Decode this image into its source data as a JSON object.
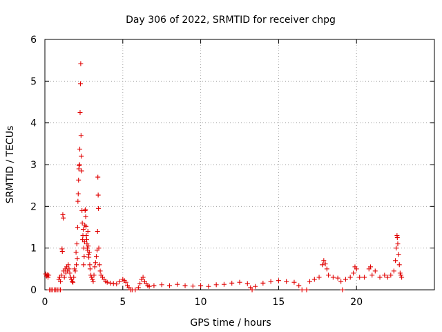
{
  "chart_data": {
    "type": "scatter",
    "title": "Day 306 of 2022, SRMTID for receiver chpg",
    "xlabel": "GPS time / hours",
    "ylabel": "SRMTID / TECUs",
    "xlim": [
      0,
      25
    ],
    "ylim": [
      0,
      6
    ],
    "xticks": [
      0,
      5,
      10,
      15,
      20
    ],
    "yticks": [
      0,
      1,
      2,
      3,
      4,
      5,
      6
    ],
    "grid": true,
    "marker": "+",
    "color": "#e00000",
    "series": [
      {
        "name": "SRMTID",
        "points": [
          [
            0.05,
            0.38
          ],
          [
            0.1,
            0.33
          ],
          [
            0.15,
            0.36
          ],
          [
            0.2,
            0.3
          ],
          [
            0.25,
            0.35
          ],
          [
            0.3,
            0.0
          ],
          [
            0.4,
            0.0
          ],
          [
            0.5,
            0.0
          ],
          [
            0.6,
            0.0
          ],
          [
            0.7,
            0.0
          ],
          [
            0.8,
            0.0
          ],
          [
            0.9,
            0.0
          ],
          [
            1.0,
            0.0
          ],
          [
            0.9,
            0.25
          ],
          [
            0.95,
            0.3
          ],
          [
            1.0,
            0.2
          ],
          [
            1.05,
            0.35
          ],
          [
            1.1,
            0.98
          ],
          [
            1.12,
            0.92
          ],
          [
            1.15,
            1.8
          ],
          [
            1.18,
            1.72
          ],
          [
            1.2,
            0.45
          ],
          [
            1.25,
            0.3
          ],
          [
            1.3,
            0.5
          ],
          [
            1.35,
            0.4
          ],
          [
            1.4,
            0.55
          ],
          [
            1.45,
            0.45
          ],
          [
            1.5,
            0.6
          ],
          [
            1.55,
            0.5
          ],
          [
            1.6,
            0.4
          ],
          [
            1.65,
            0.3
          ],
          [
            1.7,
            0.25
          ],
          [
            1.75,
            0.2
          ],
          [
            1.8,
            0.18
          ],
          [
            1.85,
            0.3
          ],
          [
            1.9,
            0.5
          ],
          [
            1.95,
            0.45
          ],
          [
            2.0,
            0.9
          ],
          [
            2.02,
            0.6
          ],
          [
            2.05,
            1.1
          ],
          [
            2.08,
            0.75
          ],
          [
            2.1,
            1.5
          ],
          [
            2.12,
            2.12
          ],
          [
            2.14,
            2.3
          ],
          [
            2.16,
            2.63
          ],
          [
            2.18,
            2.9
          ],
          [
            2.2,
            2.98
          ],
          [
            2.22,
            3.0
          ],
          [
            2.24,
            3.37
          ],
          [
            2.26,
            4.25
          ],
          [
            2.28,
            4.94
          ],
          [
            2.3,
            5.42
          ],
          [
            2.32,
            3.7
          ],
          [
            2.34,
            3.2
          ],
          [
            2.36,
            2.85
          ],
          [
            2.38,
            1.9
          ],
          [
            2.4,
            1.6
          ],
          [
            2.42,
            1.2
          ],
          [
            2.44,
            1.3
          ],
          [
            2.46,
            1.45
          ],
          [
            2.48,
            0.6
          ],
          [
            2.5,
            1.0
          ],
          [
            2.52,
            0.8
          ],
          [
            2.54,
            1.15
          ],
          [
            2.56,
            1.55
          ],
          [
            2.58,
            1.9
          ],
          [
            2.6,
            1.92
          ],
          [
            2.62,
            1.75
          ],
          [
            2.64,
            1.52
          ],
          [
            2.66,
            1.3
          ],
          [
            2.68,
            1.2
          ],
          [
            2.7,
            1.1
          ],
          [
            2.72,
            1.0
          ],
          [
            2.74,
            0.95
          ],
          [
            2.76,
            1.4
          ],
          [
            2.78,
            1.05
          ],
          [
            2.8,
            0.85
          ],
          [
            2.82,
            0.78
          ],
          [
            2.85,
            0.9
          ],
          [
            2.88,
            0.6
          ],
          [
            2.9,
            0.5
          ],
          [
            2.95,
            0.35
          ],
          [
            3.0,
            0.3
          ],
          [
            3.05,
            0.25
          ],
          [
            3.1,
            0.2
          ],
          [
            3.15,
            0.35
          ],
          [
            3.2,
            0.55
          ],
          [
            3.25,
            0.65
          ],
          [
            3.3,
            0.8
          ],
          [
            3.35,
            0.95
          ],
          [
            3.38,
            1.4
          ],
          [
            3.4,
            2.7
          ],
          [
            3.42,
            2.27
          ],
          [
            3.44,
            1.95
          ],
          [
            3.46,
            1.0
          ],
          [
            3.5,
            0.6
          ],
          [
            3.55,
            0.45
          ],
          [
            3.6,
            0.35
          ],
          [
            3.7,
            0.3
          ],
          [
            3.8,
            0.25
          ],
          [
            3.9,
            0.2
          ],
          [
            4.0,
            0.18
          ],
          [
            4.2,
            0.16
          ],
          [
            4.4,
            0.15
          ],
          [
            4.6,
            0.14
          ],
          [
            4.8,
            0.2
          ],
          [
            5.0,
            0.25
          ],
          [
            5.1,
            0.22
          ],
          [
            5.2,
            0.18
          ],
          [
            5.3,
            0.1
          ],
          [
            5.4,
            0.05
          ],
          [
            5.5,
            0.0
          ],
          [
            5.6,
            0.0
          ],
          [
            5.8,
            0.0
          ],
          [
            6.0,
            0.05
          ],
          [
            6.1,
            0.15
          ],
          [
            6.2,
            0.25
          ],
          [
            6.3,
            0.3
          ],
          [
            6.4,
            0.2
          ],
          [
            6.5,
            0.15
          ],
          [
            6.6,
            0.1
          ],
          [
            6.7,
            0.08
          ],
          [
            7.0,
            0.1
          ],
          [
            7.5,
            0.12
          ],
          [
            8.0,
            0.1
          ],
          [
            8.5,
            0.13
          ],
          [
            9.0,
            0.1
          ],
          [
            9.5,
            0.09
          ],
          [
            10.0,
            0.1
          ],
          [
            10.5,
            0.08
          ],
          [
            11.0,
            0.12
          ],
          [
            11.5,
            0.13
          ],
          [
            12.0,
            0.16
          ],
          [
            12.5,
            0.18
          ],
          [
            13.0,
            0.15
          ],
          [
            13.2,
            0.05
          ],
          [
            13.3,
            0.0
          ],
          [
            13.5,
            0.08
          ],
          [
            14.0,
            0.16
          ],
          [
            14.5,
            0.2
          ],
          [
            15.0,
            0.22
          ],
          [
            15.5,
            0.2
          ],
          [
            16.0,
            0.18
          ],
          [
            16.3,
            0.1
          ],
          [
            16.5,
            0.0
          ],
          [
            16.8,
            0.0
          ],
          [
            17.0,
            0.2
          ],
          [
            17.3,
            0.25
          ],
          [
            17.6,
            0.3
          ],
          [
            17.8,
            0.6
          ],
          [
            17.9,
            0.7
          ],
          [
            18.0,
            0.62
          ],
          [
            18.1,
            0.5
          ],
          [
            18.2,
            0.35
          ],
          [
            18.5,
            0.3
          ],
          [
            18.8,
            0.28
          ],
          [
            19.0,
            0.2
          ],
          [
            19.1,
            0.0
          ],
          [
            19.3,
            0.25
          ],
          [
            19.6,
            0.3
          ],
          [
            19.8,
            0.4
          ],
          [
            19.9,
            0.55
          ],
          [
            20.0,
            0.5
          ],
          [
            20.2,
            0.3
          ],
          [
            20.5,
            0.3
          ],
          [
            20.8,
            0.5
          ],
          [
            20.9,
            0.55
          ],
          [
            21.0,
            0.35
          ],
          [
            21.2,
            0.45
          ],
          [
            21.5,
            0.3
          ],
          [
            21.8,
            0.35
          ],
          [
            22.0,
            0.3
          ],
          [
            22.2,
            0.35
          ],
          [
            22.4,
            0.45
          ],
          [
            22.5,
            0.7
          ],
          [
            22.55,
            1.0
          ],
          [
            22.6,
            1.3
          ],
          [
            22.62,
            1.25
          ],
          [
            22.65,
            1.1
          ],
          [
            22.7,
            0.85
          ],
          [
            22.75,
            0.6
          ],
          [
            22.8,
            0.4
          ],
          [
            22.85,
            0.35
          ],
          [
            22.9,
            0.3
          ]
        ]
      }
    ]
  }
}
